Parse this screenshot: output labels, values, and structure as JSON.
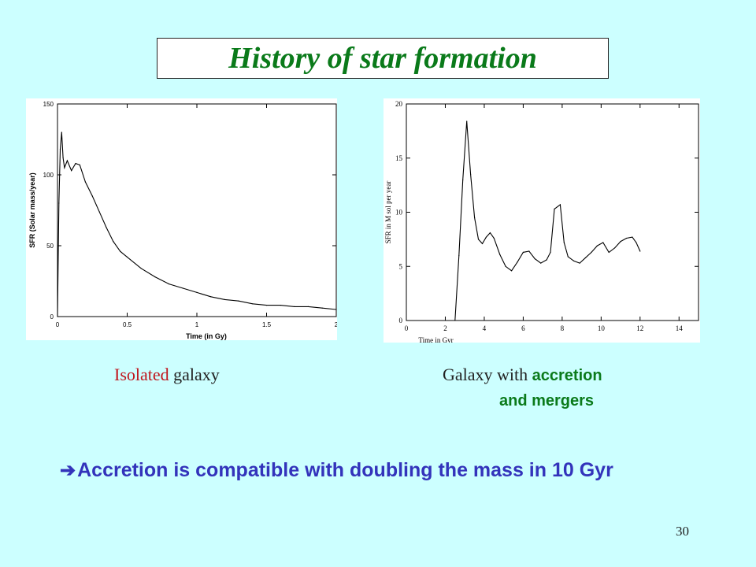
{
  "slide": {
    "title": "History of star formation",
    "caption_left_highlight": "Isolated",
    "caption_left_rest": " galaxy",
    "caption_right_prefix": "Galaxy with ",
    "caption_right_highlight1": "accretion",
    "caption_right_line2": "and mergers",
    "conclusion_text": "Accretion is compatible with doubling the mass in 10 Gyr",
    "page_number": "30",
    "colors": {
      "background": "#ccffff",
      "title": "#0a7a1a",
      "highlight_red": "#c0151c",
      "highlight_green": "#0a7a1a",
      "conclusion": "#3333bb"
    },
    "icons": {
      "arrow": "right-arrow-icon"
    }
  },
  "chart_data": [
    {
      "type": "line",
      "xlabel": "Time (in Gy)",
      "ylabel": "SFR (Solar mass/year)",
      "xlim": [
        0,
        2
      ],
      "ylim": [
        0,
        150
      ],
      "xticks": [
        0,
        0.5,
        1,
        1.5,
        2
      ],
      "xtick_labels": [
        "0",
        "0.5",
        "1",
        "1.5",
        "2"
      ],
      "yticks": [
        0,
        50,
        100,
        150
      ],
      "ytick_labels": [
        "0",
        "50",
        "100",
        "150"
      ],
      "series": [
        {
          "x": [
            0,
            0.01,
            0.02,
            0.03,
            0.04,
            0.05,
            0.07,
            0.1,
            0.13,
            0.16,
            0.2,
            0.25,
            0.3,
            0.35,
            0.4,
            0.45,
            0.5,
            0.6,
            0.7,
            0.8,
            0.9,
            1.0,
            1.1,
            1.2,
            1.3,
            1.4,
            1.5,
            1.6,
            1.7,
            1.8,
            1.9,
            2.0
          ],
          "y": [
            0,
            80,
            118,
            130,
            112,
            105,
            110,
            103,
            108,
            107,
            95,
            85,
            74,
            63,
            53,
            46,
            42,
            34,
            28,
            23,
            20,
            17,
            14,
            12,
            11,
            9,
            8,
            8,
            7,
            7,
            6,
            5
          ]
        }
      ]
    },
    {
      "type": "line",
      "xlabel": "Time in Gyr",
      "ylabel": "SFR in M sol per year",
      "xlim": [
        0,
        15
      ],
      "ylim": [
        0,
        20
      ],
      "xticks": [
        0,
        2,
        4,
        6,
        8,
        10,
        12,
        14
      ],
      "xtick_labels": [
        "0",
        "2",
        "4",
        "6",
        "8",
        "10",
        "12",
        "14"
      ],
      "yticks": [
        0,
        5,
        10,
        15,
        20
      ],
      "ytick_labels": [
        "0",
        "5",
        "10",
        "15",
        "20"
      ],
      "series": [
        {
          "x": [
            2.5,
            2.7,
            2.9,
            3.1,
            3.3,
            3.5,
            3.7,
            3.9,
            4.1,
            4.3,
            4.5,
            4.8,
            5.1,
            5.4,
            5.7,
            6.0,
            6.3,
            6.6,
            6.9,
            7.2,
            7.4,
            7.6,
            7.9,
            8.1,
            8.3,
            8.6,
            8.9,
            9.2,
            9.5,
            9.8,
            10.1,
            10.4,
            10.7,
            11.0,
            11.3,
            11.6,
            11.8,
            12.0
          ],
          "y": [
            0,
            6,
            13,
            18.4,
            13.5,
            9.5,
            7.5,
            7.1,
            7.7,
            8.1,
            7.6,
            6.1,
            5.0,
            4.6,
            5.4,
            6.3,
            6.4,
            5.7,
            5.3,
            5.6,
            6.3,
            10.3,
            10.7,
            7.2,
            5.9,
            5.5,
            5.3,
            5.8,
            6.3,
            6.9,
            7.2,
            6.3,
            6.7,
            7.3,
            7.6,
            7.7,
            7.2,
            6.4
          ]
        }
      ]
    }
  ]
}
